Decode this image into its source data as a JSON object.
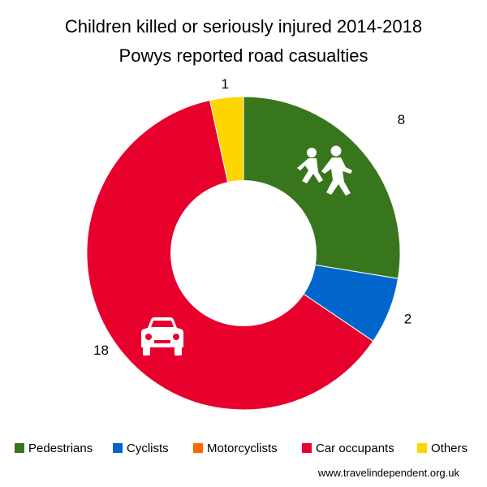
{
  "chart_data": {
    "type": "pie",
    "variant": "donut",
    "title": [
      "Children killed or seriously injured 2014-2018",
      "Powys reported road casualties"
    ],
    "categories": [
      "Pedestrians",
      "Cyclists",
      "Motorcyclists",
      "Car occupants",
      "Others"
    ],
    "values": [
      8,
      2,
      0,
      18,
      1
    ],
    "data_labels": [
      "8",
      "2",
      "",
      "18",
      "1"
    ],
    "colors": [
      "#38761d",
      "#0066cc",
      "#ff6600",
      "#e8002d",
      "#ffd500"
    ],
    "legend_position": "bottom",
    "icons": [
      "pedestrian-children-icon",
      "car-icon"
    ]
  },
  "footer": {
    "source": "www.travelindependent.org.uk"
  }
}
